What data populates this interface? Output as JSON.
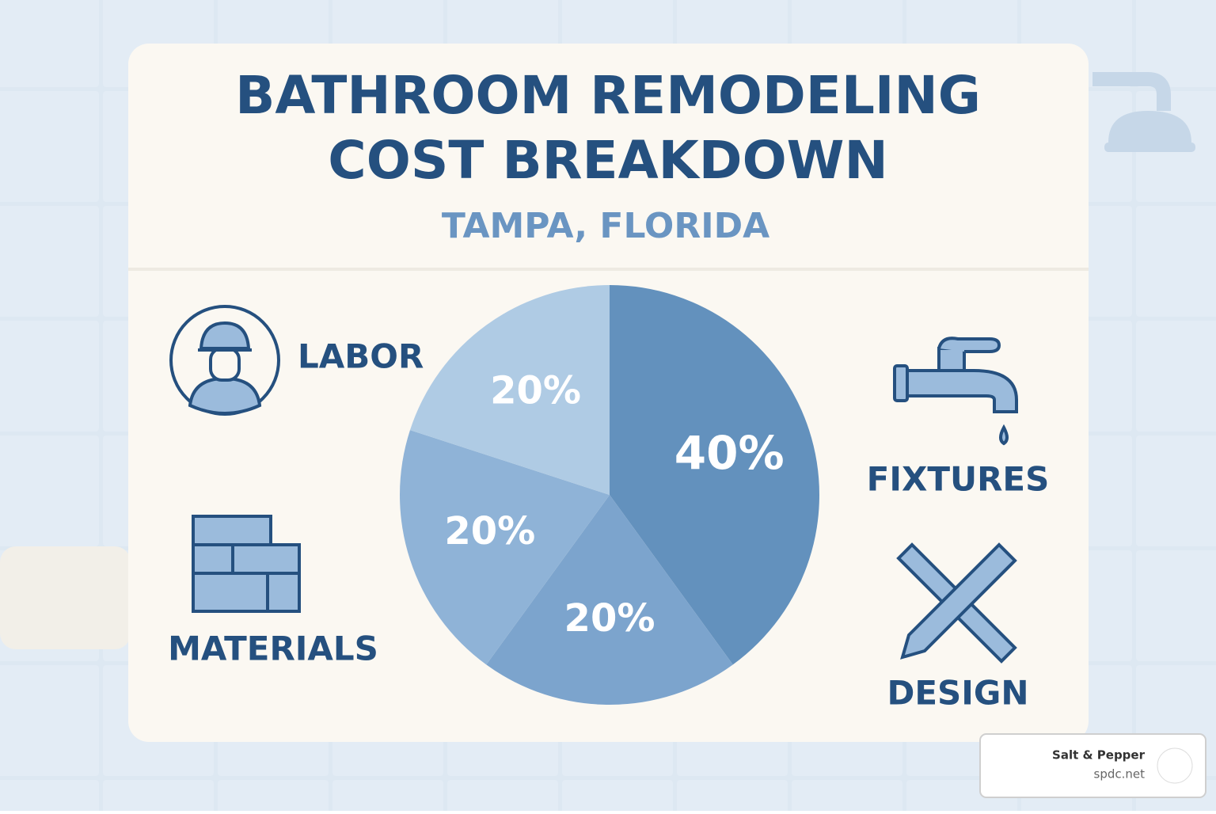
{
  "chart_data": {
    "type": "pie",
    "title": [
      "BATHROOM REMODELING",
      "COST BREAKDOWN"
    ],
    "subtitle": "TAMPA, FLORIDA",
    "labels": [
      "LABOR",
      "MATERIALS",
      "FIXTURES",
      "DESIGN"
    ],
    "values": [
      40,
      20,
      20,
      20
    ],
    "value_labels": [
      "40%",
      "20%",
      "20%",
      "20%"
    ],
    "colors": [
      "#6391bd",
      "#7ca4cd",
      "#8fb3d7",
      "#afcbe4"
    ]
  },
  "watermark": {
    "name": "Salt & Pepper",
    "url": "spdc.net"
  }
}
